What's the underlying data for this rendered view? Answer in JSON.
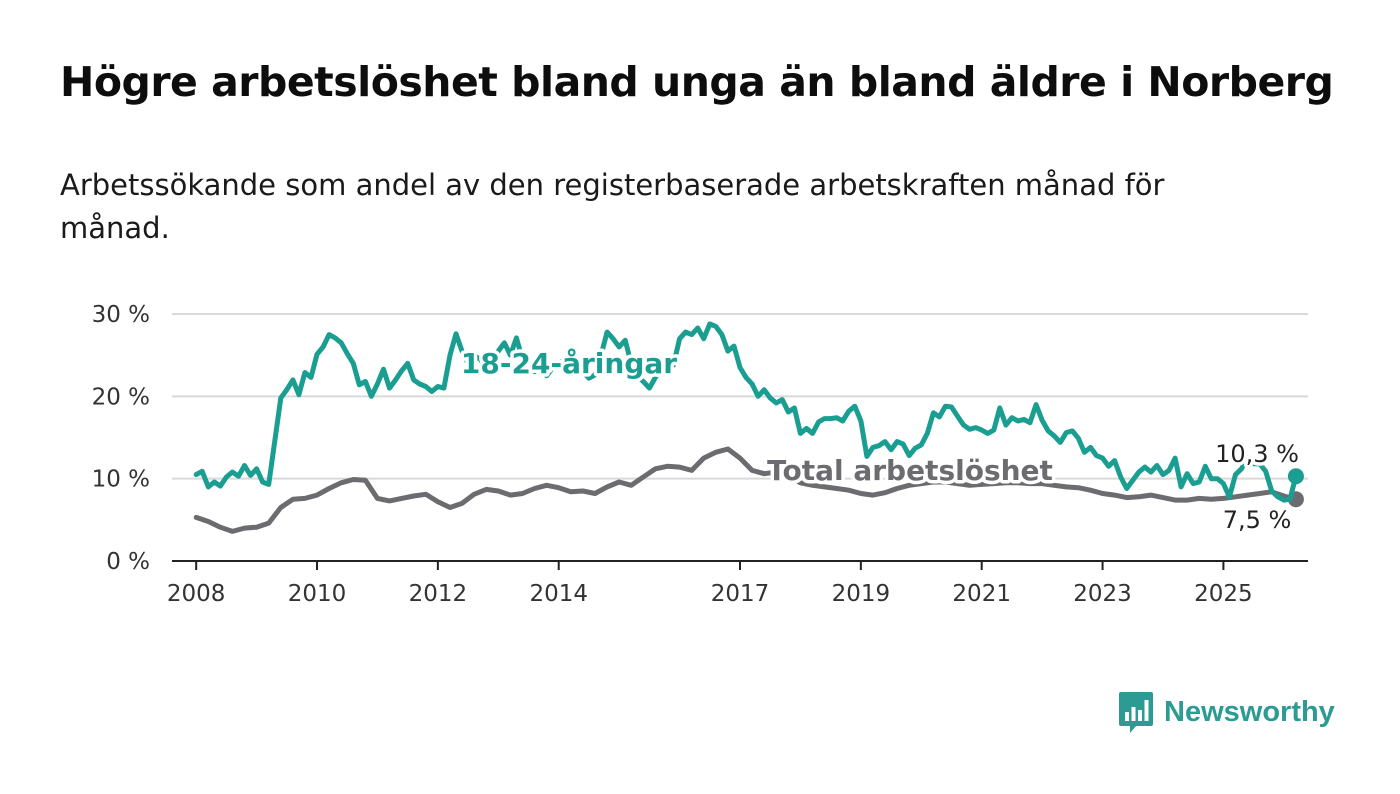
{
  "title": "Högre arbetslöshet bland unga än bland äldre i Norberg",
  "subtitle": "Arbetssökande som andel av den registerbaserade arbetskraften månad för månad.",
  "brand": {
    "name": "Newsworthy",
    "icon": "bar-chart-speech-bubble-icon",
    "color": "#2b9b93"
  },
  "chart_data": {
    "type": "line",
    "title": "Högre arbetslöshet bland unga än bland äldre i Norberg",
    "subtitle": "Arbetssökande som andel av den registerbaserade arbetskraften månad för månad.",
    "xlabel": "",
    "ylabel": "",
    "x_ticks": [
      "2008",
      "2010",
      "2012",
      "2014",
      "2017",
      "2019",
      "2021",
      "2023",
      "2025"
    ],
    "y_ticks": [
      "0 %",
      "10 %",
      "20 %",
      "30 %"
    ],
    "ylim": [
      0,
      30
    ],
    "xlim": [
      2007.6,
      2026.4
    ],
    "grid": true,
    "legend": "inline labels",
    "series": [
      {
        "name": "18-24-åringar",
        "color": "#1a9e91",
        "end_label": "10,3 %",
        "points": [
          [
            2008.0,
            10.5
          ],
          [
            2008.1,
            10.9
          ],
          [
            2008.2,
            9.0
          ],
          [
            2008.3,
            9.6
          ],
          [
            2008.4,
            9.1
          ],
          [
            2008.5,
            10.2
          ],
          [
            2008.6,
            10.8
          ],
          [
            2008.7,
            10.3
          ],
          [
            2008.8,
            11.6
          ],
          [
            2008.9,
            10.4
          ],
          [
            2009.0,
            11.2
          ],
          [
            2009.1,
            9.6
          ],
          [
            2009.2,
            9.3
          ],
          [
            2009.3,
            14.5
          ],
          [
            2009.4,
            19.8
          ],
          [
            2009.5,
            20.8
          ],
          [
            2009.6,
            22.0
          ],
          [
            2009.7,
            20.2
          ],
          [
            2009.8,
            22.9
          ],
          [
            2009.9,
            22.3
          ],
          [
            2010.0,
            25.1
          ],
          [
            2010.1,
            26.0
          ],
          [
            2010.2,
            27.5
          ],
          [
            2010.3,
            27.1
          ],
          [
            2010.4,
            26.5
          ],
          [
            2010.5,
            25.2
          ],
          [
            2010.6,
            24.0
          ],
          [
            2010.7,
            21.4
          ],
          [
            2010.8,
            21.8
          ],
          [
            2010.9,
            20.0
          ],
          [
            2011.0,
            21.5
          ],
          [
            2011.1,
            23.3
          ],
          [
            2011.2,
            21.0
          ],
          [
            2011.3,
            22.0
          ],
          [
            2011.4,
            23.1
          ],
          [
            2011.5,
            24.0
          ],
          [
            2011.6,
            22.0
          ],
          [
            2011.7,
            21.5
          ],
          [
            2011.8,
            21.2
          ],
          [
            2011.9,
            20.6
          ],
          [
            2012.0,
            21.2
          ],
          [
            2012.1,
            21.0
          ],
          [
            2012.2,
            25.0
          ],
          [
            2012.3,
            27.6
          ],
          [
            2012.4,
            25.5
          ],
          [
            2012.5,
            24.0
          ],
          [
            2012.6,
            25.0
          ],
          [
            2012.7,
            24.5
          ],
          [
            2012.8,
            23.5
          ],
          [
            2012.9,
            24.2
          ],
          [
            2013.0,
            25.5
          ],
          [
            2013.1,
            26.5
          ],
          [
            2013.2,
            25.0
          ],
          [
            2013.3,
            27.1
          ],
          [
            2013.4,
            24.5
          ],
          [
            2013.5,
            23.8
          ],
          [
            2013.6,
            23.0
          ],
          [
            2013.7,
            24.0
          ],
          [
            2013.8,
            22.5
          ],
          [
            2013.9,
            23.5
          ],
          [
            2014.0,
            24.0
          ],
          [
            2014.1,
            24.5
          ],
          [
            2014.2,
            24.8
          ],
          [
            2014.3,
            24.0
          ],
          [
            2014.4,
            23.0
          ],
          [
            2014.5,
            22.2
          ],
          [
            2014.6,
            22.6
          ],
          [
            2014.7,
            25.0
          ],
          [
            2014.8,
            27.8
          ],
          [
            2014.9,
            27.0
          ],
          [
            2015.0,
            26.0
          ],
          [
            2015.1,
            26.8
          ],
          [
            2015.2,
            24.0
          ],
          [
            2015.3,
            22.5
          ],
          [
            2015.4,
            21.8
          ],
          [
            2015.5,
            21.0
          ],
          [
            2015.6,
            22.3
          ],
          [
            2015.7,
            23.4
          ],
          [
            2015.8,
            24.5
          ],
          [
            2015.9,
            23.8
          ],
          [
            2016.0,
            27.0
          ],
          [
            2016.1,
            27.8
          ],
          [
            2016.2,
            27.5
          ],
          [
            2016.3,
            28.3
          ],
          [
            2016.4,
            27.0
          ],
          [
            2016.5,
            28.8
          ],
          [
            2016.6,
            28.5
          ],
          [
            2016.7,
            27.5
          ],
          [
            2016.8,
            25.5
          ],
          [
            2016.9,
            26.1
          ],
          [
            2017.0,
            23.5
          ],
          [
            2017.1,
            22.3
          ],
          [
            2017.2,
            21.5
          ],
          [
            2017.3,
            20.0
          ],
          [
            2017.4,
            20.8
          ],
          [
            2017.5,
            19.8
          ],
          [
            2017.6,
            19.2
          ],
          [
            2017.7,
            19.6
          ],
          [
            2017.8,
            18.1
          ],
          [
            2017.9,
            18.6
          ],
          [
            2018.0,
            15.5
          ],
          [
            2018.1,
            16.1
          ],
          [
            2018.2,
            15.5
          ],
          [
            2018.3,
            16.9
          ],
          [
            2018.4,
            17.3
          ],
          [
            2018.5,
            17.3
          ],
          [
            2018.6,
            17.4
          ],
          [
            2018.7,
            17.0
          ],
          [
            2018.8,
            18.2
          ],
          [
            2018.9,
            18.8
          ],
          [
            2019.0,
            17.0
          ],
          [
            2019.1,
            12.7
          ],
          [
            2019.2,
            13.8
          ],
          [
            2019.3,
            14.0
          ],
          [
            2019.4,
            14.5
          ],
          [
            2019.5,
            13.5
          ],
          [
            2019.6,
            14.5
          ],
          [
            2019.7,
            14.2
          ],
          [
            2019.8,
            12.8
          ],
          [
            2019.9,
            13.7
          ],
          [
            2020.0,
            14.1
          ],
          [
            2020.1,
            15.5
          ],
          [
            2020.2,
            18.0
          ],
          [
            2020.3,
            17.5
          ],
          [
            2020.4,
            18.8
          ],
          [
            2020.5,
            18.7
          ],
          [
            2020.6,
            17.6
          ],
          [
            2020.7,
            16.5
          ],
          [
            2020.8,
            16.0
          ],
          [
            2020.9,
            16.2
          ],
          [
            2021.0,
            15.9
          ],
          [
            2021.1,
            15.5
          ],
          [
            2021.2,
            15.9
          ],
          [
            2021.3,
            18.6
          ],
          [
            2021.4,
            16.5
          ],
          [
            2021.5,
            17.4
          ],
          [
            2021.6,
            17.0
          ],
          [
            2021.7,
            17.2
          ],
          [
            2021.8,
            16.8
          ],
          [
            2021.9,
            19.0
          ],
          [
            2022.0,
            17.1
          ],
          [
            2022.1,
            15.8
          ],
          [
            2022.2,
            15.2
          ],
          [
            2022.3,
            14.4
          ],
          [
            2022.4,
            15.6
          ],
          [
            2022.5,
            15.8
          ],
          [
            2022.6,
            14.9
          ],
          [
            2022.7,
            13.2
          ],
          [
            2022.8,
            13.8
          ],
          [
            2022.9,
            12.8
          ],
          [
            2023.0,
            12.5
          ],
          [
            2023.1,
            11.5
          ],
          [
            2023.2,
            12.2
          ],
          [
            2023.3,
            10.2
          ],
          [
            2023.4,
            8.8
          ],
          [
            2023.5,
            9.8
          ],
          [
            2023.6,
            10.8
          ],
          [
            2023.7,
            11.4
          ],
          [
            2023.8,
            10.8
          ],
          [
            2023.9,
            11.6
          ],
          [
            2024.0,
            10.5
          ],
          [
            2024.1,
            11.0
          ],
          [
            2024.2,
            12.5
          ],
          [
            2024.3,
            9.0
          ],
          [
            2024.4,
            10.6
          ],
          [
            2024.5,
            9.4
          ],
          [
            2024.6,
            9.6
          ],
          [
            2024.7,
            11.5
          ],
          [
            2024.8,
            10.0
          ],
          [
            2024.9,
            10.0
          ],
          [
            2025.0,
            9.4
          ],
          [
            2025.1,
            7.8
          ],
          [
            2025.2,
            10.5
          ],
          [
            2025.3,
            11.2
          ],
          [
            2025.4,
            12.5
          ],
          [
            2025.5,
            11.8
          ],
          [
            2025.6,
            11.8
          ],
          [
            2025.7,
            10.9
          ],
          [
            2025.8,
            8.5
          ],
          [
            2025.9,
            7.8
          ],
          [
            2026.0,
            7.4
          ],
          [
            2026.1,
            7.5
          ],
          [
            2026.2,
            10.3
          ]
        ]
      },
      {
        "name": "Total arbetslöshet",
        "color": "#6b6b70",
        "end_label": "7,5 %",
        "points": [
          [
            2008.0,
            5.3
          ],
          [
            2008.2,
            4.8
          ],
          [
            2008.4,
            4.1
          ],
          [
            2008.6,
            3.6
          ],
          [
            2008.8,
            4.0
          ],
          [
            2009.0,
            4.1
          ],
          [
            2009.2,
            4.6
          ],
          [
            2009.4,
            6.5
          ],
          [
            2009.6,
            7.5
          ],
          [
            2009.8,
            7.6
          ],
          [
            2010.0,
            8.0
          ],
          [
            2010.2,
            8.8
          ],
          [
            2010.4,
            9.5
          ],
          [
            2010.6,
            9.9
          ],
          [
            2010.8,
            9.8
          ],
          [
            2011.0,
            7.6
          ],
          [
            2011.2,
            7.3
          ],
          [
            2011.4,
            7.6
          ],
          [
            2011.6,
            7.9
          ],
          [
            2011.8,
            8.1
          ],
          [
            2012.0,
            7.2
          ],
          [
            2012.2,
            6.5
          ],
          [
            2012.4,
            7.0
          ],
          [
            2012.6,
            8.1
          ],
          [
            2012.8,
            8.7
          ],
          [
            2013.0,
            8.5
          ],
          [
            2013.2,
            8.0
          ],
          [
            2013.4,
            8.2
          ],
          [
            2013.6,
            8.8
          ],
          [
            2013.8,
            9.2
          ],
          [
            2014.0,
            8.9
          ],
          [
            2014.2,
            8.4
          ],
          [
            2014.4,
            8.5
          ],
          [
            2014.6,
            8.2
          ],
          [
            2014.8,
            9.0
          ],
          [
            2015.0,
            9.6
          ],
          [
            2015.2,
            9.2
          ],
          [
            2015.4,
            10.2
          ],
          [
            2015.6,
            11.2
          ],
          [
            2015.8,
            11.5
          ],
          [
            2016.0,
            11.4
          ],
          [
            2016.2,
            11.0
          ],
          [
            2016.4,
            12.5
          ],
          [
            2016.6,
            13.2
          ],
          [
            2016.8,
            13.6
          ],
          [
            2017.0,
            12.5
          ],
          [
            2017.2,
            11.0
          ],
          [
            2017.4,
            10.6
          ],
          [
            2017.6,
            10.8
          ],
          [
            2017.8,
            10.2
          ],
          [
            2018.0,
            9.5
          ],
          [
            2018.2,
            9.2
          ],
          [
            2018.4,
            9.0
          ],
          [
            2018.6,
            8.8
          ],
          [
            2018.8,
            8.6
          ],
          [
            2019.0,
            8.2
          ],
          [
            2019.2,
            8.0
          ],
          [
            2019.4,
            8.3
          ],
          [
            2019.6,
            8.8
          ],
          [
            2019.8,
            9.2
          ],
          [
            2020.0,
            9.4
          ],
          [
            2020.2,
            9.6
          ],
          [
            2020.4,
            9.6
          ],
          [
            2020.6,
            9.4
          ],
          [
            2020.8,
            9.2
          ],
          [
            2021.0,
            9.3
          ],
          [
            2021.2,
            9.4
          ],
          [
            2021.4,
            9.5
          ],
          [
            2021.6,
            9.5
          ],
          [
            2021.8,
            9.4
          ],
          [
            2022.0,
            9.4
          ],
          [
            2022.2,
            9.2
          ],
          [
            2022.4,
            9.0
          ],
          [
            2022.6,
            8.9
          ],
          [
            2022.8,
            8.6
          ],
          [
            2023.0,
            8.2
          ],
          [
            2023.2,
            8.0
          ],
          [
            2023.4,
            7.7
          ],
          [
            2023.6,
            7.8
          ],
          [
            2023.8,
            8.0
          ],
          [
            2024.0,
            7.7
          ],
          [
            2024.2,
            7.4
          ],
          [
            2024.4,
            7.4
          ],
          [
            2024.6,
            7.6
          ],
          [
            2024.8,
            7.5
          ],
          [
            2025.0,
            7.6
          ],
          [
            2025.2,
            7.8
          ],
          [
            2025.4,
            8.0
          ],
          [
            2025.6,
            8.2
          ],
          [
            2025.8,
            8.4
          ],
          [
            2026.0,
            7.9
          ],
          [
            2026.2,
            7.5
          ]
        ]
      }
    ]
  }
}
